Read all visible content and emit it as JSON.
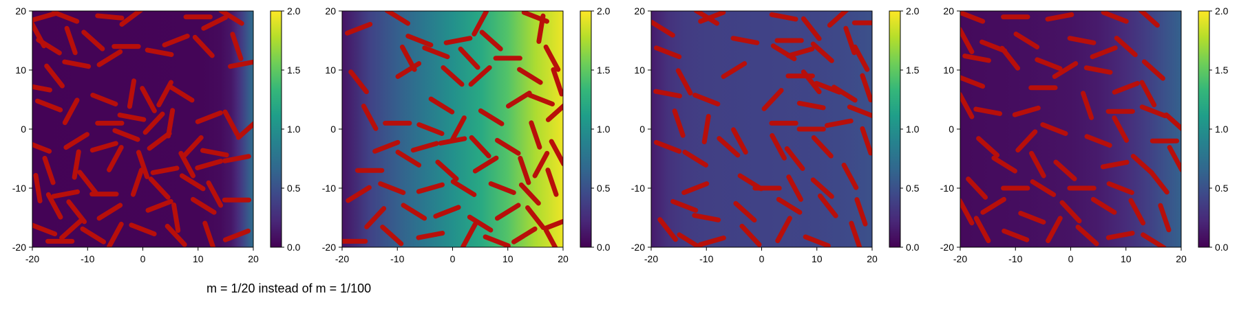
{
  "caption": "m = 1/20 instead of m = 1/100",
  "colors": {
    "rod": "#b80f0a",
    "viridis": [
      "#440154",
      "#482878",
      "#3e4989",
      "#31688e",
      "#26828e",
      "#1f9e89",
      "#35b779",
      "#6ece58",
      "#b5de2b",
      "#fde725"
    ]
  },
  "chart_data": [
    {
      "type": "heatmap",
      "panel": 1,
      "xlim": [
        -20,
        20
      ],
      "ylim": [
        -20,
        20
      ],
      "x_ticks": [
        "-20",
        "-10",
        "0",
        "10",
        "20"
      ],
      "y_ticks": [
        "-20",
        "-10",
        "0",
        "10",
        "20"
      ],
      "colorbar": {
        "range": [
          0,
          2
        ],
        "ticks": [
          "0.0",
          "0.5",
          "1.0",
          "1.5",
          "2.0"
        ]
      },
      "field_profile": {
        "x": [
          -20,
          10,
          14,
          16,
          17,
          18,
          19,
          20
        ],
        "value": [
          0.01,
          0.02,
          0.05,
          0.12,
          0.22,
          0.38,
          0.55,
          0.72
        ]
      },
      "rods": [
        [
          -18,
          19,
          15
        ],
        [
          -14,
          19,
          -20
        ],
        [
          -6,
          19,
          -5
        ],
        [
          -2,
          19,
          35
        ],
        [
          10,
          19,
          0
        ],
        [
          13,
          18,
          25
        ],
        [
          16,
          19,
          -30
        ],
        [
          -19,
          16,
          -60
        ],
        [
          -17,
          14,
          -30
        ],
        [
          -13,
          15,
          -70
        ],
        [
          -9,
          15,
          -40
        ],
        [
          -3,
          14,
          0
        ],
        [
          3,
          13,
          -10
        ],
        [
          6,
          15,
          20
        ],
        [
          11,
          14,
          -45
        ],
        [
          17,
          14,
          -70
        ],
        [
          18,
          11,
          10
        ],
        [
          -12,
          11,
          -10
        ],
        [
          -6,
          12,
          30
        ],
        [
          -16,
          9,
          -50
        ],
        [
          -19,
          7,
          -10
        ],
        [
          -7,
          5,
          -20
        ],
        [
          -2,
          6,
          80
        ],
        [
          1,
          5,
          -60
        ],
        [
          4,
          6,
          60
        ],
        [
          7,
          6,
          -30
        ],
        [
          -17,
          4,
          -20
        ],
        [
          -13,
          3,
          60
        ],
        [
          -6,
          1,
          0
        ],
        [
          -2,
          2,
          -10
        ],
        [
          2,
          1,
          45
        ],
        [
          5,
          1,
          80
        ],
        [
          12,
          2,
          20
        ],
        [
          16,
          1,
          -60
        ],
        [
          19,
          0,
          40
        ],
        [
          -19,
          -3,
          -20
        ],
        [
          -12,
          -2,
          30
        ],
        [
          -7,
          -3,
          15
        ],
        [
          -3,
          -1,
          -20
        ],
        [
          3,
          -2,
          35
        ],
        [
          9,
          -3,
          45
        ],
        [
          13,
          -4,
          -10
        ],
        [
          -17,
          -7,
          -70
        ],
        [
          -12,
          -6,
          80
        ],
        [
          -5,
          -5,
          60
        ],
        [
          0,
          -6,
          -70
        ],
        [
          4,
          -7,
          10
        ],
        [
          8,
          -6,
          -60
        ],
        [
          12,
          -6,
          15
        ],
        [
          17,
          -5,
          10
        ],
        [
          -19,
          -10,
          -80
        ],
        [
          -14,
          -11,
          10
        ],
        [
          -10,
          -9,
          -50
        ],
        [
          -7,
          -11,
          0
        ],
        [
          -1,
          -9,
          70
        ],
        [
          3,
          -10,
          -45
        ],
        [
          9,
          -9,
          -30
        ],
        [
          13,
          -11,
          -60
        ],
        [
          -16,
          -13,
          -60
        ],
        [
          -12,
          -14,
          -50
        ],
        [
          -6,
          -14,
          30
        ],
        [
          3,
          -13,
          20
        ],
        [
          6,
          -15,
          -80
        ],
        [
          11,
          -13,
          -30
        ],
        [
          17,
          -12,
          0
        ],
        [
          -18,
          -17,
          -20
        ],
        [
          -13,
          -17,
          40
        ],
        [
          -9,
          -18,
          -30
        ],
        [
          -5,
          -18,
          60
        ],
        [
          0,
          -17,
          -20
        ],
        [
          6,
          -18,
          -45
        ],
        [
          12,
          -18,
          -70
        ],
        [
          17,
          -18,
          20
        ],
        [
          -15,
          -19,
          0
        ]
      ]
    },
    {
      "type": "heatmap",
      "panel": 2,
      "xlim": [
        -20,
        20
      ],
      "ylim": [
        -20,
        20
      ],
      "x_ticks": [
        "-20",
        "-10",
        "0",
        "10",
        "20"
      ],
      "y_ticks": [
        "-20",
        "-10",
        "0",
        "10",
        "20"
      ],
      "colorbar": {
        "range": [
          0,
          2
        ],
        "ticks": [
          "0.0",
          "0.5",
          "1.0",
          "1.5",
          "2.0"
        ]
      },
      "field_profile": {
        "x": [
          -20,
          -15,
          -10,
          -5,
          0,
          5,
          10,
          15,
          20
        ],
        "value": [
          0.1,
          0.4,
          0.6,
          0.8,
          1.0,
          1.2,
          1.45,
          1.75,
          1.95
        ]
      },
      "rods": [
        [
          -10,
          19,
          -30
        ],
        [
          5,
          18,
          60
        ],
        [
          15,
          19,
          -20
        ],
        [
          -17,
          17,
          20
        ],
        [
          -6,
          15,
          -20
        ],
        [
          1,
          15,
          10
        ],
        [
          7,
          15,
          -40
        ],
        [
          16,
          17,
          80
        ],
        [
          -8,
          12,
          -60
        ],
        [
          -3,
          13,
          -20
        ],
        [
          3,
          12,
          -45
        ],
        [
          10,
          12,
          0
        ],
        [
          18,
          12,
          -60
        ],
        [
          -17,
          8,
          -50
        ],
        [
          -8,
          10,
          30
        ],
        [
          0,
          9,
          -40
        ],
        [
          5,
          9,
          40
        ],
        [
          14,
          9,
          -30
        ],
        [
          19,
          8,
          -70
        ],
        [
          -15,
          2,
          -60
        ],
        [
          -10,
          1,
          0
        ],
        [
          -2,
          4,
          -30
        ],
        [
          -4,
          0,
          -20
        ],
        [
          1,
          0,
          60
        ],
        [
          7,
          2,
          -30
        ],
        [
          12,
          5,
          30
        ],
        [
          16,
          5,
          -20
        ],
        [
          19,
          3,
          40
        ],
        [
          -12,
          -3,
          20
        ],
        [
          -5,
          -3,
          15
        ],
        [
          0,
          -2,
          10
        ],
        [
          5,
          -3,
          -45
        ],
        [
          10,
          -3,
          -30
        ],
        [
          15,
          -1,
          -70
        ],
        [
          19,
          -4,
          -60
        ],
        [
          -15,
          -7,
          0
        ],
        [
          -8,
          -5,
          -30
        ],
        [
          -1,
          -7,
          -40
        ],
        [
          6,
          -6,
          30
        ],
        [
          13,
          -7,
          -70
        ],
        [
          16,
          -6,
          60
        ],
        [
          -17,
          -11,
          30
        ],
        [
          -11,
          -10,
          -20
        ],
        [
          -4,
          -10,
          15
        ],
        [
          2,
          -10,
          -30
        ],
        [
          9,
          -10,
          -20
        ],
        [
          14,
          -11,
          -45
        ],
        [
          18,
          -9,
          -70
        ],
        [
          -14,
          -15,
          45
        ],
        [
          -7,
          -14,
          -30
        ],
        [
          -1,
          -14,
          20
        ],
        [
          5,
          -16,
          -30
        ],
        [
          10,
          -14,
          30
        ],
        [
          15,
          -15,
          -50
        ],
        [
          19,
          -16,
          20
        ],
        [
          -18,
          -19,
          0
        ],
        [
          -11,
          -18,
          -40
        ],
        [
          -4,
          -18,
          10
        ],
        [
          3,
          -18,
          60
        ],
        [
          8,
          -19,
          -20
        ],
        [
          13,
          -18,
          30
        ],
        [
          18,
          -19,
          -60
        ]
      ]
    },
    {
      "type": "heatmap",
      "panel": 3,
      "xlim": [
        -20,
        20
      ],
      "ylim": [
        -20,
        20
      ],
      "x_ticks": [
        "-20",
        "-10",
        "0",
        "10",
        "20"
      ],
      "y_ticks": [
        "-20",
        "-10",
        "0",
        "10",
        "20"
      ],
      "colorbar": {
        "range": [
          0,
          2
        ],
        "ticks": [
          "0.0",
          "0.5",
          "1.0",
          "1.5",
          "2.0"
        ]
      },
      "field_profile": {
        "x": [
          -20,
          -17,
          -14,
          -10,
          0,
          10,
          16,
          20
        ],
        "value": [
          0.15,
          0.28,
          0.35,
          0.38,
          0.4,
          0.42,
          0.45,
          0.5
        ]
      },
      "rods": [
        [
          -10,
          19,
          -30
        ],
        [
          -9,
          19,
          20
        ],
        [
          4,
          19,
          -10
        ],
        [
          14,
          19,
          40
        ],
        [
          19,
          18,
          0
        ],
        [
          -18,
          17,
          -30
        ],
        [
          -3,
          15,
          -10
        ],
        [
          5,
          15,
          0
        ],
        [
          9,
          17,
          -50
        ],
        [
          16,
          15,
          -70
        ],
        [
          -17,
          13,
          -20
        ],
        [
          4,
          13,
          -30
        ],
        [
          7,
          13,
          15
        ],
        [
          11,
          13,
          -40
        ],
        [
          18,
          12,
          -60
        ],
        [
          -5,
          10,
          30
        ],
        [
          -14,
          8,
          -60
        ],
        [
          7,
          9,
          0
        ],
        [
          9,
          8,
          -50
        ],
        [
          12,
          7,
          -20
        ],
        [
          15,
          6,
          -30
        ],
        [
          19,
          7,
          -70
        ],
        [
          -17,
          6,
          -10
        ],
        [
          -10,
          5,
          -20
        ],
        [
          2,
          5,
          45
        ],
        [
          9,
          4,
          -10
        ],
        [
          18,
          3,
          -20
        ],
        [
          -15,
          1,
          -70
        ],
        [
          -10,
          0,
          80
        ],
        [
          -4,
          -2,
          -60
        ],
        [
          4,
          1,
          0
        ],
        [
          9,
          0,
          0
        ],
        [
          14,
          1,
          10
        ],
        [
          -17,
          -3,
          -20
        ],
        [
          -12,
          -5,
          -30
        ],
        [
          -6,
          -3,
          -40
        ],
        [
          3,
          -3,
          -60
        ],
        [
          6,
          -5,
          -50
        ],
        [
          11,
          -3,
          -45
        ],
        [
          19,
          -2,
          -70
        ],
        [
          -12,
          -10,
          20
        ],
        [
          -2,
          -9,
          -30
        ],
        [
          1,
          -10,
          0
        ],
        [
          6,
          -10,
          -60
        ],
        [
          11,
          -10,
          -40
        ],
        [
          16,
          -8,
          -60
        ],
        [
          -14,
          -13,
          -20
        ],
        [
          -10,
          -15,
          -10
        ],
        [
          -3,
          -14,
          -40
        ],
        [
          5,
          -13,
          -30
        ],
        [
          12,
          -13,
          -50
        ],
        [
          18,
          -14,
          -70
        ],
        [
          -17,
          -17,
          -50
        ],
        [
          -13,
          -19,
          -30
        ],
        [
          -9,
          -19,
          15
        ],
        [
          -2,
          -18,
          -45
        ],
        [
          4,
          -17,
          60
        ],
        [
          10,
          -19,
          -20
        ],
        [
          17,
          -18,
          -70
        ]
      ]
    },
    {
      "type": "heatmap",
      "panel": 4,
      "xlim": [
        -20,
        20
      ],
      "ylim": [
        -20,
        20
      ],
      "x_ticks": [
        "-20",
        "-10",
        "0",
        "10",
        "20"
      ],
      "y_ticks": [
        "-20",
        "-10",
        "0",
        "10",
        "20"
      ],
      "colorbar": {
        "range": [
          0,
          2
        ],
        "ticks": [
          "0.0",
          "0.5",
          "1.0",
          "1.5",
          "2.0"
        ]
      },
      "field_profile": {
        "x": [
          -20,
          -10,
          0,
          5,
          10,
          14,
          17,
          20
        ],
        "value": [
          0.05,
          0.07,
          0.1,
          0.15,
          0.25,
          0.38,
          0.5,
          0.62
        ]
      },
      "rods": [
        [
          -18,
          19,
          -20
        ],
        [
          -10,
          19,
          0
        ],
        [
          -2,
          19,
          10
        ],
        [
          8,
          19,
          -20
        ],
        [
          14,
          19,
          -40
        ],
        [
          -19,
          15,
          -60
        ],
        [
          -14,
          14,
          -20
        ],
        [
          -8,
          15,
          -30
        ],
        [
          2,
          15,
          -10
        ],
        [
          6,
          13,
          20
        ],
        [
          10,
          14,
          -40
        ],
        [
          -17,
          12,
          -10
        ],
        [
          -11,
          12,
          -50
        ],
        [
          -4,
          11,
          -20
        ],
        [
          -1,
          10,
          30
        ],
        [
          5,
          10,
          -10
        ],
        [
          15,
          10,
          -40
        ],
        [
          -18,
          8,
          -20
        ],
        [
          -5,
          7,
          0
        ],
        [
          10,
          7,
          20
        ],
        [
          14,
          6,
          -60
        ],
        [
          -19,
          4,
          -60
        ],
        [
          -15,
          3,
          -10
        ],
        [
          -8,
          3,
          15
        ],
        [
          3,
          4,
          -70
        ],
        [
          9,
          3,
          0
        ],
        [
          15,
          3,
          -20
        ],
        [
          19,
          1,
          -40
        ],
        [
          -15,
          -3,
          -40
        ],
        [
          -8,
          -2,
          45
        ],
        [
          -3,
          0,
          -20
        ],
        [
          5,
          -2,
          -20
        ],
        [
          9,
          0,
          -60
        ],
        [
          17,
          -2,
          0
        ],
        [
          -12,
          -6,
          -30
        ],
        [
          -6,
          -6,
          -60
        ],
        [
          -1,
          -7,
          -40
        ],
        [
          8,
          -6,
          10
        ],
        [
          13,
          -6,
          -40
        ],
        [
          19,
          -5,
          -60
        ],
        [
          -17,
          -10,
          -45
        ],
        [
          -10,
          -10,
          0
        ],
        [
          -5,
          -10,
          -30
        ],
        [
          2,
          -10,
          0
        ],
        [
          9,
          -10,
          -20
        ],
        [
          16,
          -9,
          -50
        ],
        [
          -19,
          -14,
          -60
        ],
        [
          -14,
          -13,
          30
        ],
        [
          -7,
          -15,
          -20
        ],
        [
          0,
          -14,
          -45
        ],
        [
          6,
          -13,
          -30
        ],
        [
          12,
          -14,
          -60
        ],
        [
          17,
          -15,
          -70
        ],
        [
          -16,
          -17,
          -60
        ],
        [
          -10,
          -18,
          -20
        ],
        [
          -3,
          -17,
          60
        ],
        [
          3,
          -18,
          -40
        ],
        [
          9,
          -18,
          10
        ],
        [
          15,
          -19,
          -30
        ]
      ]
    }
  ]
}
